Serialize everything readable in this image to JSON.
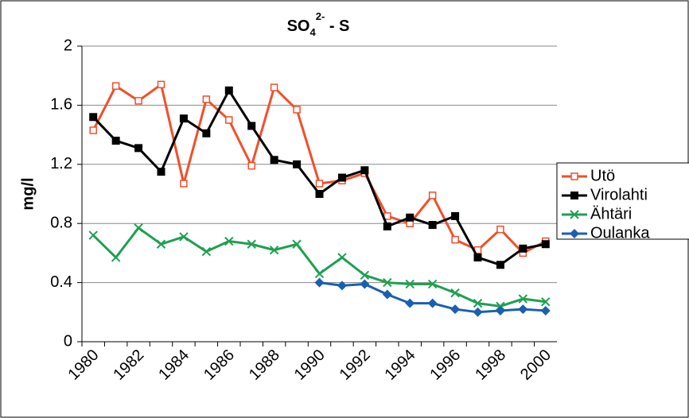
{
  "chart_data": {
    "type": "line",
    "title": {
      "main": "SO",
      "sub": "4",
      "sup": "2-",
      "rest": " - S"
    },
    "y_label": "mg/l",
    "categories": [
      "1980",
      null,
      "1982",
      null,
      "1984",
      null,
      "1986",
      null,
      "1988",
      null,
      "1990",
      null,
      "1992",
      null,
      "1994",
      null,
      "1996",
      null,
      "1998",
      null,
      "2000"
    ],
    "ylim": [
      0,
      2
    ],
    "yticks": [
      0,
      0.4,
      0.8,
      1.2,
      1.6,
      2
    ],
    "grid": true,
    "series": [
      {
        "name": "Utö",
        "color": "#f0502a",
        "marker": "open-square",
        "values": [
          1.43,
          1.73,
          1.63,
          1.74,
          1.07,
          1.64,
          1.5,
          1.19,
          1.72,
          1.57,
          1.07,
          1.09,
          1.14,
          0.85,
          0.8,
          0.99,
          0.69,
          0.62,
          0.76,
          0.6,
          0.68
        ]
      },
      {
        "name": "Virolahti",
        "color": "#000000",
        "marker": "square",
        "values": [
          1.52,
          1.36,
          1.31,
          1.15,
          1.51,
          1.41,
          1.7,
          1.46,
          1.23,
          1.2,
          1.0,
          1.11,
          1.16,
          0.78,
          0.84,
          0.79,
          0.85,
          0.57,
          0.52,
          0.63,
          0.66
        ]
      },
      {
        "name": "Ähtäri",
        "color": "#1fa050",
        "marker": "x",
        "values": [
          0.72,
          0.57,
          0.77,
          0.66,
          0.71,
          0.61,
          0.68,
          0.66,
          0.62,
          0.66,
          0.46,
          0.57,
          0.45,
          0.4,
          0.39,
          0.39,
          0.33,
          0.26,
          0.24,
          0.29,
          0.27
        ]
      },
      {
        "name": "Oulanka",
        "color": "#1a5fb4",
        "marker": "diamond",
        "values": [
          null,
          null,
          null,
          null,
          null,
          null,
          null,
          null,
          null,
          null,
          0.4,
          0.38,
          0.39,
          0.32,
          0.26,
          0.26,
          0.22,
          0.2,
          0.21,
          0.22,
          0.21
        ]
      }
    ]
  }
}
